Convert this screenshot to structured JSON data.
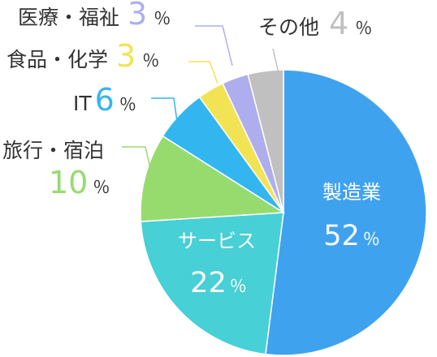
{
  "chart_data": {
    "type": "pie",
    "percent_symbol": "％",
    "slices": [
      {
        "key": "manufacturing",
        "label": "製造業",
        "value": 52,
        "color": "#3fa2ef"
      },
      {
        "key": "services",
        "label": "サービス",
        "value": 22,
        "color": "#47d0d5"
      },
      {
        "key": "travel",
        "label": "旅行・宿泊",
        "value": 10,
        "color": "#97db6f"
      },
      {
        "key": "it",
        "label": "IT",
        "value": 6,
        "color": "#33b6f0"
      },
      {
        "key": "food",
        "label": "食品・化学",
        "value": 3,
        "color": "#f2e355"
      },
      {
        "key": "medical",
        "label": "医療・福祉",
        "value": 3,
        "color": "#aeaeee"
      },
      {
        "key": "other",
        "label": "その他",
        "value": 4,
        "color": "#c0c0c0"
      }
    ]
  }
}
